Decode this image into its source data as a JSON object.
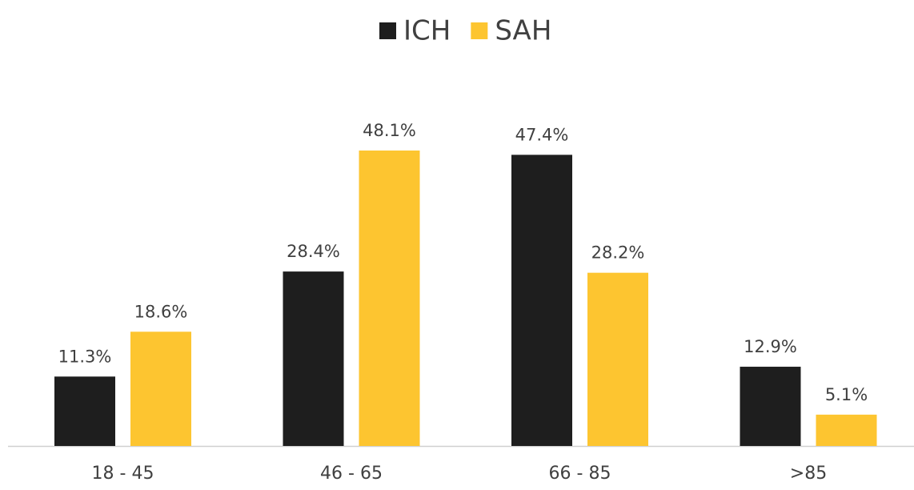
{
  "chart_data": {
    "type": "bar",
    "categories": [
      "18 - 45",
      "46 - 65",
      "66 - 85",
      ">85"
    ],
    "series": [
      {
        "name": "ICH",
        "color": "#1e1e1e",
        "values": [
          11.3,
          28.4,
          47.4,
          12.9
        ],
        "value_labels": [
          "11.3%",
          "28.4%",
          "47.4%",
          "12.9%"
        ]
      },
      {
        "name": "SAH",
        "color": "#fdc530",
        "values": [
          18.6,
          48.1,
          28.2,
          5.1
        ],
        "value_labels": [
          "18.6%",
          "48.1%",
          "28.2%",
          "5.1%"
        ]
      }
    ],
    "legend": "top"
  }
}
